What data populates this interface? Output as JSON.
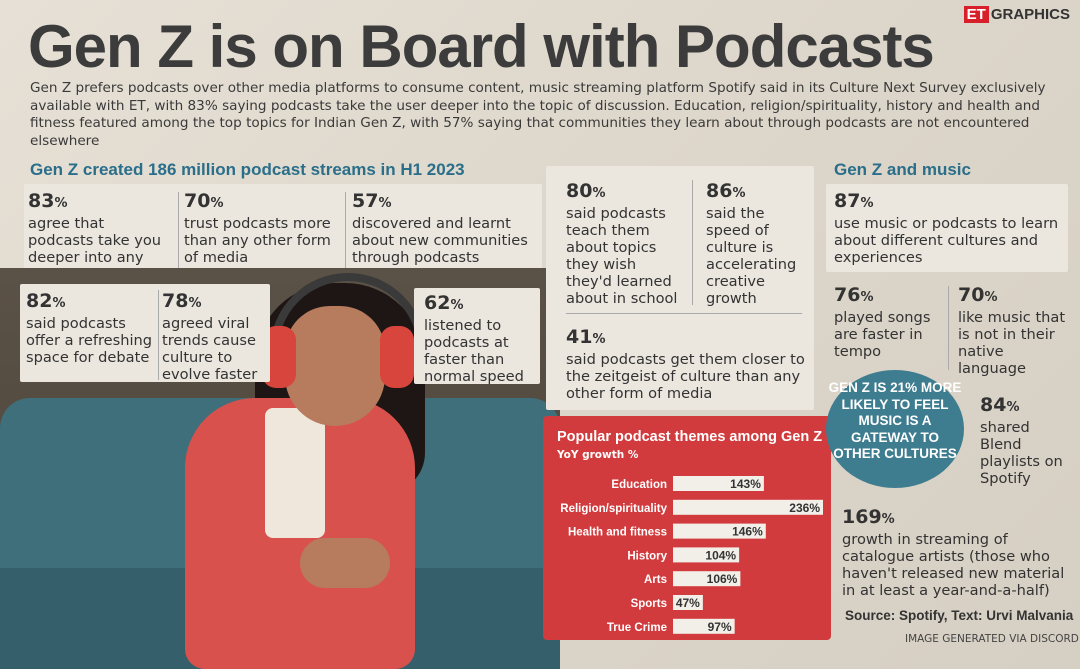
{
  "brand": {
    "prefix": "ET",
    "suffix": "GRAPHICS"
  },
  "title": "Gen Z is on Board with Podcasts",
  "intro": "Gen Z prefers podcasts over other media platforms to consume content, music streaming platform Spotify said in its Culture Next Survey exclusively available with ET, with 83% saying podcasts take the user deeper into the topic of discussion. Education, religion/spirituality, history and health and fitness featured among the top topics for Indian Gen Z, with 57% saying that communities they learn about through podcasts are not encountered elsewhere",
  "left_section": {
    "heading": "Gen Z created 186 million podcast streams in H1 2023",
    "stats": [
      {
        "num": "83",
        "text": "agree that podcasts take you deeper into any topic"
      },
      {
        "num": "70",
        "text": "trust podcasts more than any other form of media"
      },
      {
        "num": "57",
        "text": "discovered and learnt about new communities through podcasts"
      },
      {
        "num": "82",
        "text": "said podcasts offer a refreshing space for debate"
      },
      {
        "num": "78",
        "text": "agreed viral trends cause culture to evolve faster"
      },
      {
        "num": "62",
        "text": "listened to podcasts at faster than normal speed"
      }
    ]
  },
  "middle_section": {
    "stats": [
      {
        "num": "80",
        "text": "said podcasts teach them about topics they wish they'd learned about in school"
      },
      {
        "num": "86",
        "text": "said the speed of culture is accelerating creative growth"
      },
      {
        "num": "41",
        "text": "said podcasts get them closer to the zeitgeist of culture than any other form of media"
      }
    ]
  },
  "right_section": {
    "heading": "Gen Z and music",
    "stats": [
      {
        "num": "87",
        "text": "use music or podcasts to learn about different cultures and experiences"
      },
      {
        "num": "76",
        "text": "played songs are faster in tempo"
      },
      {
        "num": "70",
        "text": "like music that is not in their native language"
      },
      {
        "num": "84",
        "text": "shared Blend playlists on Spotify"
      },
      {
        "num": "169",
        "text": "growth in streaming of catalogue artists (those who haven't released new material in at least a year-and-a-half)"
      }
    ],
    "badge": "GEN Z IS 21% MORE LIKELY TO FEEL MUSIC IS A GATEWAY TO OTHER CULTURES"
  },
  "pct_sign": "%",
  "chart_data": {
    "type": "bar",
    "title": "Popular podcast themes among Gen Z",
    "subtitle": "YoY growth %",
    "categories": [
      "Education",
      "Religion/spirituality",
      "Health and fitness",
      "History",
      "Arts",
      "Sports",
      "True Crime"
    ],
    "values": [
      143,
      236,
      146,
      104,
      106,
      47,
      97
    ],
    "value_labels": [
      "143%",
      "236%",
      "146%",
      "104%",
      "106%",
      "47%",
      "97%"
    ],
    "xlim": [
      0,
      236
    ],
    "orientation": "horizontal",
    "grid": false,
    "colors": {
      "background": "#d23b3d",
      "bar": "#f2efe9",
      "text": "#ffffff",
      "label": "#333333"
    }
  },
  "source": "Source: Spotify, Text: Urvi Malvania",
  "credit": "IMAGE GENERATED VIA DISCORD",
  "colors": {
    "heading": "#2a6e8a",
    "badge": "#3e7c8f",
    "chart": "#d23b3d",
    "et_red": "#d8202b"
  }
}
